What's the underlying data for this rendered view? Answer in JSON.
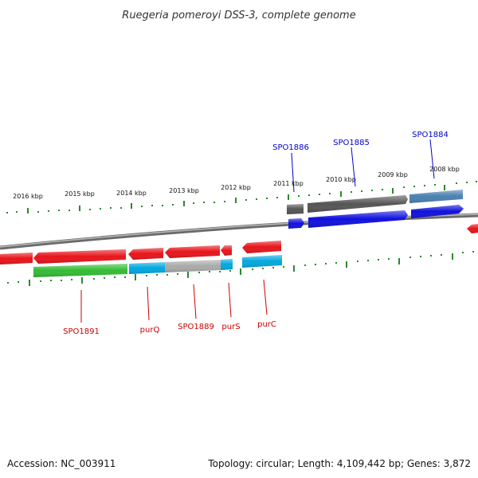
{
  "title": "Ruegeria pomeroyi DSS-3, complete genome",
  "footer": {
    "accession": "Accession: NC_003911",
    "summary": "Topology: circular; Length: 4,109,442 bp; Genes: 3,872"
  },
  "colors": {
    "backbone": "#888888",
    "ticks": "#2a8a2a",
    "label_forward": "#0000cc",
    "label_reverse": "#cc0000",
    "cds_red": "#e8141a",
    "gene_green": "#33bb33",
    "gene_cyan": "#00a8e0",
    "gene_gray": "#aaaaaa",
    "gene_dark": "#555555",
    "gene_blue": "#1010dd",
    "gene_steel": "#4a80b0"
  },
  "ruler": {
    "ticks": [
      "2016 kbp",
      "2015 kbp",
      "2014 kbp",
      "2013 kbp",
      "2012 kbp",
      "2011 kbp",
      "2010 kbp",
      "2009 kbp",
      "2008 kbp"
    ]
  },
  "gene_labels": {
    "forward": [
      "SPO1886",
      "SPO1885",
      "SPO1884"
    ],
    "reverse": [
      "SPO1891",
      "purQ",
      "SPO1889",
      "purS",
      "purC"
    ]
  }
}
